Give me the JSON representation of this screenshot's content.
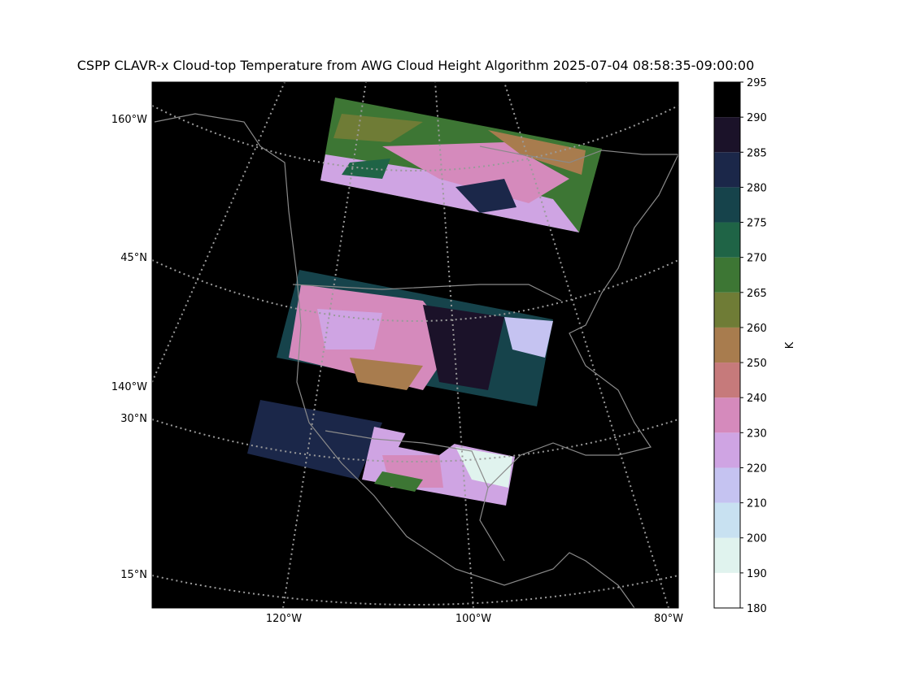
{
  "title": "CSPP CLAVR-x Cloud-top Temperature from AWG Cloud Height Algorithm 2025-07-04 08:58:35-09:00:00",
  "left_labels": [
    "160°W",
    "45°N",
    "140°W",
    "30°N",
    "15°N"
  ],
  "bottom_labels": [
    "120°W",
    "100°W",
    "80°W"
  ],
  "colorbar": {
    "label": "K",
    "ticks": [
      180,
      190,
      200,
      210,
      220,
      230,
      240,
      250,
      260,
      265,
      270,
      275,
      280,
      285,
      290,
      295
    ],
    "colors": [
      "#ffffff",
      "#e0f3ee",
      "#c8e1f1",
      "#c5c3f1",
      "#cfa4e3",
      "#d58abc",
      "#c67a7b",
      "#a87c4e",
      "#6f7c36",
      "#3d7634",
      "#1f6446",
      "#16434b",
      "#1b2749",
      "#1b1229",
      "#000000"
    ]
  }
}
